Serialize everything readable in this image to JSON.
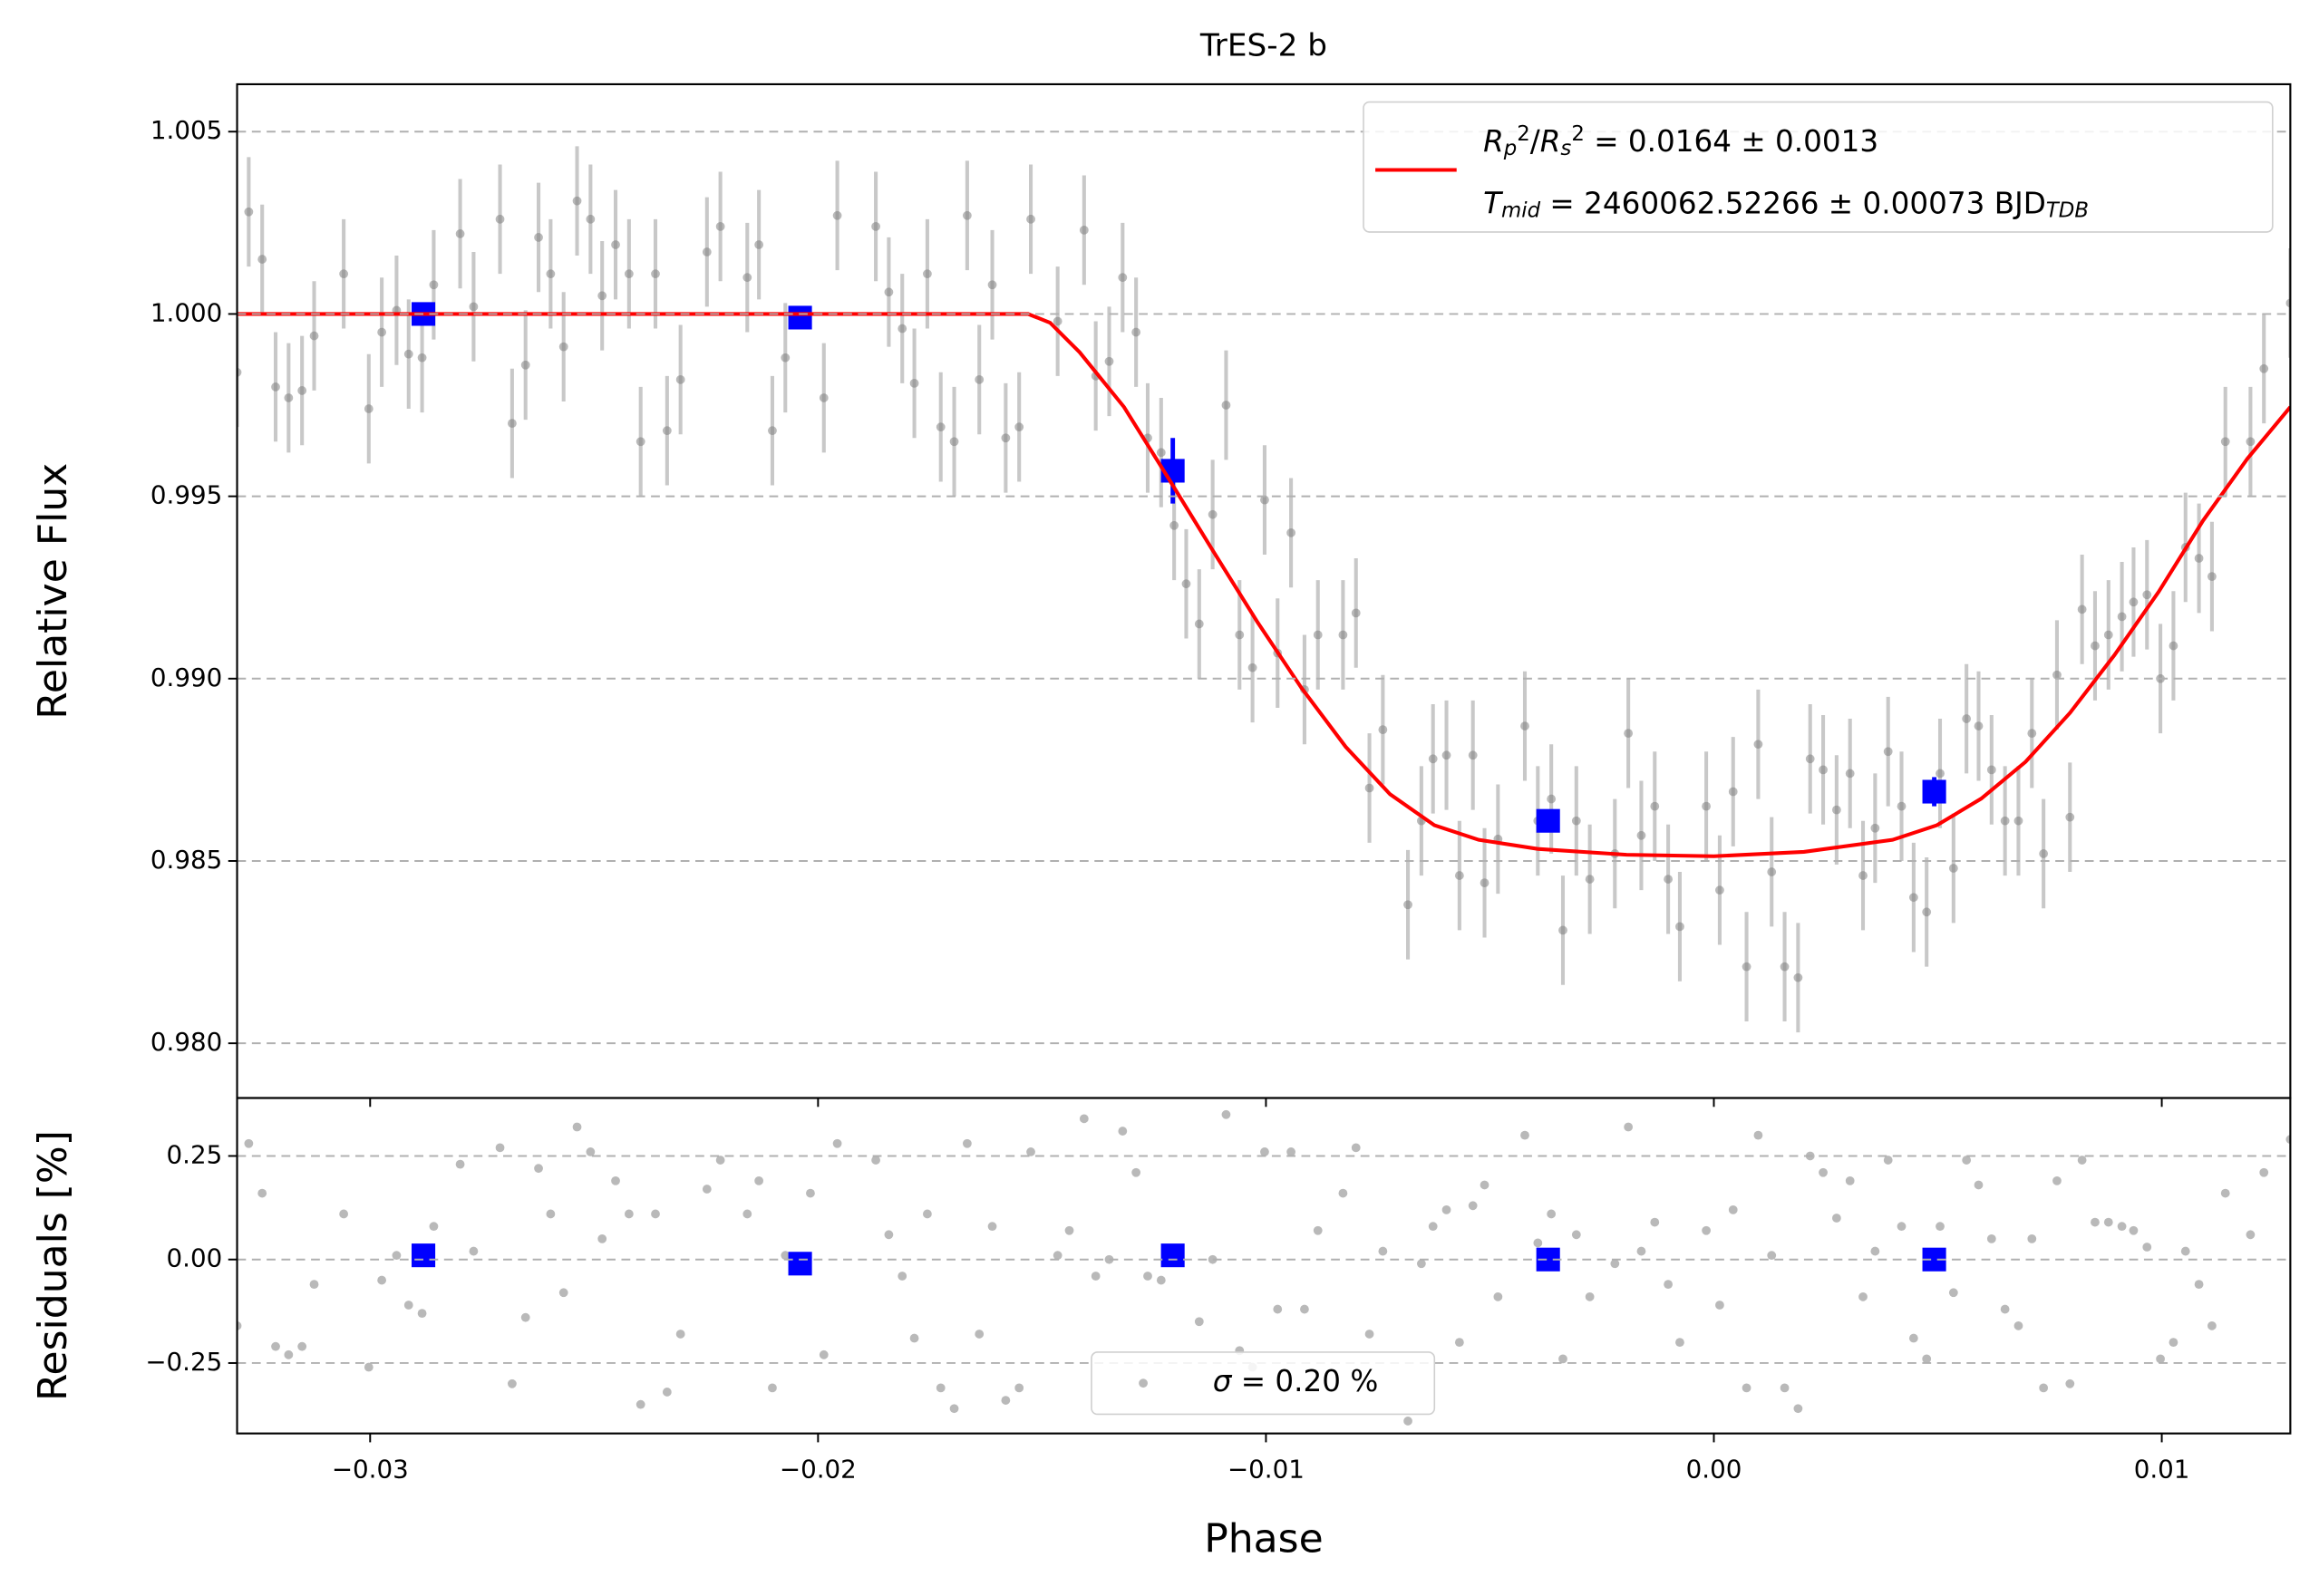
{
  "chart_data": [
    {
      "type": "scatter",
      "title": "TrES-2 b",
      "y_label": "Relative Flux",
      "xlim": [
        -0.03297,
        0.01287
      ],
      "ylim": [
        0.9785,
        1.0063
      ],
      "yticks": [
        {
          "value": 0.98,
          "label": "0.980"
        },
        0.985,
        {
          "value": 0.99,
          "label": "0.990"
        },
        0.995,
        {
          "value": 1,
          "label": "1.000"
        },
        1.005
      ],
      "grid": "y",
      "legend": "upper right",
      "series": [
        {
          "marker": "o",
          "color": "#808080",
          "error_color": "#c8c8c8",
          "yerr": 0.0015,
          "x": [
            -0.03297,
            -0.03271,
            -0.03241,
            -0.03211,
            -0.03182,
            -0.03152,
            -0.03125,
            -0.03059,
            -0.03003,
            -0.02974,
            -0.02941,
            -0.02914,
            -0.02884,
            -0.02858,
            -0.02799,
            -0.02769,
            -0.0271,
            -0.02683,
            -0.02653,
            -0.02624,
            -0.02597,
            -0.02568,
            -0.02538,
            -0.02508,
            -0.02482,
            -0.02452,
            -0.02422,
            -0.02396,
            -0.02363,
            -0.02337,
            -0.02307,
            -0.02248,
            -0.02218,
            -0.02158,
            -0.02132,
            -0.02102,
            -0.02073,
            -0.01987,
            -0.01957,
            -0.01871,
            -0.01842,
            -0.01812,
            -0.01785,
            -0.01756,
            -0.01726,
            -0.01696,
            -0.01667,
            -0.0164,
            -0.01611,
            -0.01581,
            -0.01551,
            -0.01525,
            -0.01465,
            -0.01406,
            -0.0138,
            -0.0135,
            -0.0132,
            -0.0129,
            -0.01264,
            -0.01234,
            -0.01205,
            -0.01178,
            -0.01149,
            -0.01119,
            -0.01089,
            -0.01059,
            -0.0103,
            -0.01003,
            -0.00974,
            -0.00944,
            -0.00914,
            -0.00884,
            -0.00828,
            -0.00799,
            -0.00769,
            -0.00739,
            -0.00683,
            -0.00653,
            -0.00627,
            -0.00597,
            -0.00568,
            -0.00538,
            -0.00512,
            -0.00482,
            -0.00422,
            -0.00393,
            -0.00363,
            -0.00337,
            -0.00307,
            -0.00277,
            -0.00221,
            -0.00191,
            -0.00162,
            -0.00132,
            -0.00102,
            -0.00076,
            -0.00017,
            0.00013,
            0.00043,
            0.00073,
            0.00099,
            0.00129,
            0.00158,
            0.00188,
            0.00215,
            0.00244,
            0.00274,
            0.00304,
            0.00333,
            0.0036,
            0.00389,
            0.00419,
            0.00446,
            0.00475,
            0.00505,
            0.00535,
            0.00564,
            0.00591,
            0.0062,
            0.0065,
            0.0068,
            0.0071,
            0.00736,
            0.00766,
            0.00795,
            0.00822,
            0.00851,
            0.00881,
            0.00911,
            0.00937,
            0.00967,
            0.00997,
            0.01026,
            0.01053,
            0.01083,
            0.01112,
            0.01142,
            0.01198,
            0.01228,
            0.01287
          ],
          "values": [
            0.9984,
            1.0028,
            1.0015,
            0.998,
            0.9977,
            0.9979,
            0.9994,
            1.0011,
            0.9974,
            0.9995,
            1.0001,
            0.9989,
            0.9988,
            1.0008,
            1.0022,
            1.0002,
            1.0026,
            0.997,
            0.9986,
            1.0021,
            1.0011,
            0.9991,
            1.0031,
            1.0026,
            1.0005,
            1.0019,
            1.0011,
            0.9965,
            1.0011,
            0.9968,
            0.9982,
            1.0017,
            1.0024,
            1.001,
            1.0019,
            0.9968,
            0.9988,
            0.9977,
            1.0027,
            1.0024,
            1.0006,
            0.9996,
            0.9981,
            1.0011,
            0.9969,
            0.9965,
            1.0027,
            0.9982,
            1.0008,
            0.9966,
            0.9969,
            1.0026,
            0.9998,
            1.0023,
            0.9983,
            0.9987,
            1.001,
            0.9995,
            0.9966,
            0.9962,
            0.9942,
            0.9926,
            0.9915,
            0.9945,
            0.9975,
            0.9912,
            0.9903,
            0.9949,
            0.9907,
            0.994,
            0.9897,
            0.9912,
            0.9912,
            0.9918,
            0.987,
            0.9886,
            0.9838,
            0.9861,
            0.9878,
            0.9879,
            0.9846,
            0.9879,
            0.9844,
            0.9856,
            0.9887,
            0.9861,
            0.9867,
            0.9831,
            0.9861,
            0.9845,
            0.9852,
            0.9885,
            0.9857,
            0.9865,
            0.9845,
            0.9832,
            0.9865,
            0.9842,
            0.9869,
            0.9821,
            0.9882,
            0.9847,
            0.9821,
            0.9818,
            0.9878,
            0.9875,
            0.9864,
            0.9874,
            0.9846,
            0.9859,
            0.988,
            0.9865,
            0.984,
            0.9836,
            0.9874,
            0.9848,
            0.9889,
            0.9887,
            0.9875,
            0.9861,
            0.9861,
            0.9885,
            0.9852,
            0.9901,
            0.9862,
            0.9919,
            0.9909,
            0.9912,
            0.9917,
            0.9921,
            0.9923,
            0.99,
            0.9909,
            0.9936,
            0.9933,
            0.9928,
            0.9965,
            0.9965,
            0.9985,
            1.0003
          ]
        },
        {
          "marker": "s",
          "color": "#0000ff",
          "x": [
            -0.02881,
            -0.0204,
            -0.01208,
            -0.0037,
            0.00492
          ],
          "values": [
            1.0,
            0.9999,
            0.9957,
            0.9861,
            0.9869
          ],
          "errors": [
            0.0003,
            0.0003,
            0.0009,
            0.0003,
            0.0004
          ]
        },
        {
          "type": "line",
          "color": "#ff0000",
          "name": [
            [
              {
                "t": "R",
                "s": "it"
              },
              {
                "t": "p",
                "s": "sub"
              },
              {
                "t": "2",
                "s": "sup"
              },
              {
                "t": "/",
                "s": "rm"
              },
              {
                "t": "R",
                "s": "it"
              },
              {
                "t": "s",
                "s": "sub"
              },
              {
                "t": "2",
                "s": "sup"
              },
              {
                "t": " = 0.0164 ± 0.0013",
                "s": "rm"
              }
            ],
            [
              {
                "t": "T",
                "s": "it"
              },
              {
                "t": "mid",
                "s": "sub"
              },
              {
                "t": " = 2460062.52266 ± 0.00073 BJD",
                "s": "rm"
              },
              {
                "t": "TDB",
                "s": "sub"
              }
            ]
          ],
          "x": [
            -0.033,
            -0.01531,
            -0.01482,
            -0.01416,
            -0.01317,
            -0.01218,
            -0.01119,
            -0.0102,
            -0.00921,
            -0.00822,
            -0.00723,
            -0.00624,
            -0.00525,
            -0.00393,
            -0.00195,
            0.0,
            0.00201,
            0.00399,
            0.00498,
            0.00597,
            0.00696,
            0.00795,
            0.00894,
            0.00993,
            0.01092,
            0.01191,
            0.01287
          ],
          "values": [
            1.0,
            1.0,
            0.99976,
            0.99895,
            0.99745,
            0.9955,
            0.99352,
            0.99157,
            0.98975,
            0.98813,
            0.98683,
            0.98598,
            0.98558,
            0.98533,
            0.98517,
            0.98513,
            0.98525,
            0.98558,
            0.98598,
            0.98671,
            0.98772,
            0.98906,
            0.99064,
            0.99238,
            0.99433,
            0.99603,
            0.99745
          ]
        }
      ]
    },
    {
      "type": "scatter",
      "x_label": "Phase",
      "y_label": "Residuals [%]",
      "xlim": [
        -0.03297,
        0.01287
      ],
      "ylim": [
        -0.42,
        0.39
      ],
      "xticks": [
        {
          "value": -0.03,
          "label": "−0.03"
        },
        {
          "value": -0.02,
          "label": "−0.02"
        },
        {
          "value": -0.01,
          "label": "−0.01"
        },
        {
          "value": 0,
          "label": "0.00"
        },
        0.01
      ],
      "yticks": [
        {
          "value": -0.25,
          "label": "−0.25"
        },
        {
          "value": 0,
          "label": "0.00"
        },
        0.25
      ],
      "grid": "y",
      "legend": "lower center",
      "series": [
        {
          "marker": "o",
          "color": "#808080",
          "name": [
            [
              {
                "t": "σ",
                "s": "it"
              },
              {
                "t": " = 0.20 %",
                "s": "rm"
              }
            ]
          ],
          "x": [
            -0.03297,
            -0.03271,
            -0.03241,
            -0.03211,
            -0.03182,
            -0.03152,
            -0.03125,
            -0.03059,
            -0.03003,
            -0.02974,
            -0.02941,
            -0.02914,
            -0.02884,
            -0.02858,
            -0.02799,
            -0.02769,
            -0.0271,
            -0.02683,
            -0.02653,
            -0.02624,
            -0.02597,
            -0.02568,
            -0.02538,
            -0.02508,
            -0.02482,
            -0.02452,
            -0.02422,
            -0.02396,
            -0.02363,
            -0.02337,
            -0.02307,
            -0.02248,
            -0.02218,
            -0.02158,
            -0.02132,
            -0.02102,
            -0.02073,
            -0.02017,
            -0.01987,
            -0.01957,
            -0.01871,
            -0.01842,
            -0.01812,
            -0.01785,
            -0.01756,
            -0.01726,
            -0.01696,
            -0.01667,
            -0.0164,
            -0.01611,
            -0.01581,
            -0.01551,
            -0.01525,
            -0.01465,
            -0.01439,
            -0.01406,
            -0.0138,
            -0.0135,
            -0.0132,
            -0.0129,
            -0.01264,
            -0.01234,
            -0.01205,
            -0.01149,
            -0.01119,
            -0.01089,
            -0.01059,
            -0.0103,
            -0.01003,
            -0.00974,
            -0.00944,
            -0.00914,
            -0.00884,
            -0.00828,
            -0.00799,
            -0.00769,
            -0.00739,
            -0.00683,
            -0.00653,
            -0.00627,
            -0.00597,
            -0.00568,
            -0.00538,
            -0.00512,
            -0.00482,
            -0.00422,
            -0.00393,
            -0.00363,
            -0.00337,
            -0.00307,
            -0.00277,
            -0.00221,
            -0.00191,
            -0.00162,
            -0.00132,
            -0.00102,
            -0.00076,
            -0.00017,
            0.00013,
            0.00043,
            0.00073,
            0.00099,
            0.00129,
            0.00158,
            0.00188,
            0.00215,
            0.00244,
            0.00274,
            0.00304,
            0.00333,
            0.0036,
            0.00389,
            0.00419,
            0.00446,
            0.00475,
            0.00505,
            0.00535,
            0.00564,
            0.00591,
            0.0062,
            0.0065,
            0.0068,
            0.0071,
            0.00736,
            0.00766,
            0.00795,
            0.00822,
            0.00851,
            0.00881,
            0.00911,
            0.00937,
            0.00967,
            0.00997,
            0.01026,
            0.01053,
            0.01083,
            0.01112,
            0.01142,
            0.01198,
            0.01228,
            0.01287
          ],
          "values": [
            -0.16,
            0.28,
            0.16,
            -0.21,
            -0.23,
            -0.21,
            -0.06,
            0.11,
            -0.26,
            -0.05,
            0.01,
            -0.11,
            -0.13,
            0.08,
            0.23,
            0.02,
            0.27,
            -0.3,
            -0.14,
            0.22,
            0.11,
            -0.08,
            0.32,
            0.26,
            0.05,
            0.19,
            0.11,
            -0.35,
            0.11,
            -0.32,
            -0.18,
            0.17,
            0.24,
            0.11,
            0.19,
            -0.31,
            0.01,
            0.16,
            -0.23,
            0.28,
            0.24,
            0.06,
            -0.04,
            -0.19,
            0.11,
            -0.31,
            -0.36,
            0.28,
            -0.18,
            0.08,
            -0.34,
            -0.31,
            0.26,
            0.01,
            0.07,
            0.34,
            -0.04,
            0.0,
            0.31,
            0.21,
            -0.04,
            -0.05,
            0.01,
            -0.15,
            0.0,
            0.35,
            -0.22,
            -0.26,
            0.26,
            -0.12,
            0.26,
            -0.12,
            0.07,
            0.16,
            0.27,
            -0.18,
            0.02,
            -0.39,
            -0.01,
            0.08,
            0.12,
            -0.2,
            0.13,
            0.18,
            -0.09,
            0.3,
            0.04,
            0.11,
            -0.24,
            0.06,
            -0.09,
            -0.01,
            0.32,
            0.02,
            0.09,
            -0.06,
            -0.2,
            0.07,
            -0.11,
            0.12,
            -0.31,
            0.3,
            0.01,
            -0.31,
            -0.36,
            0.25,
            0.21,
            0.1,
            0.19,
            -0.09,
            0.02,
            0.24,
            0.08,
            -0.19,
            -0.24,
            0.08,
            -0.08,
            0.24,
            0.18,
            0.05,
            -0.12,
            -0.16,
            0.05,
            -0.31,
            0.19,
            -0.3,
            0.24,
            0.09,
            0.09,
            0.08,
            0.07,
            0.03,
            -0.24,
            -0.2,
            0.02,
            -0.06,
            -0.16,
            0.16,
            0.06,
            0.21,
            0.29
          ]
        },
        {
          "marker": "s",
          "color": "#0000ff",
          "x": [
            -0.02881,
            -0.0204,
            -0.01208,
            -0.0037,
            0.00492
          ],
          "values": [
            0.01,
            -0.01,
            0.01,
            0.0,
            0.0
          ]
        }
      ]
    }
  ]
}
